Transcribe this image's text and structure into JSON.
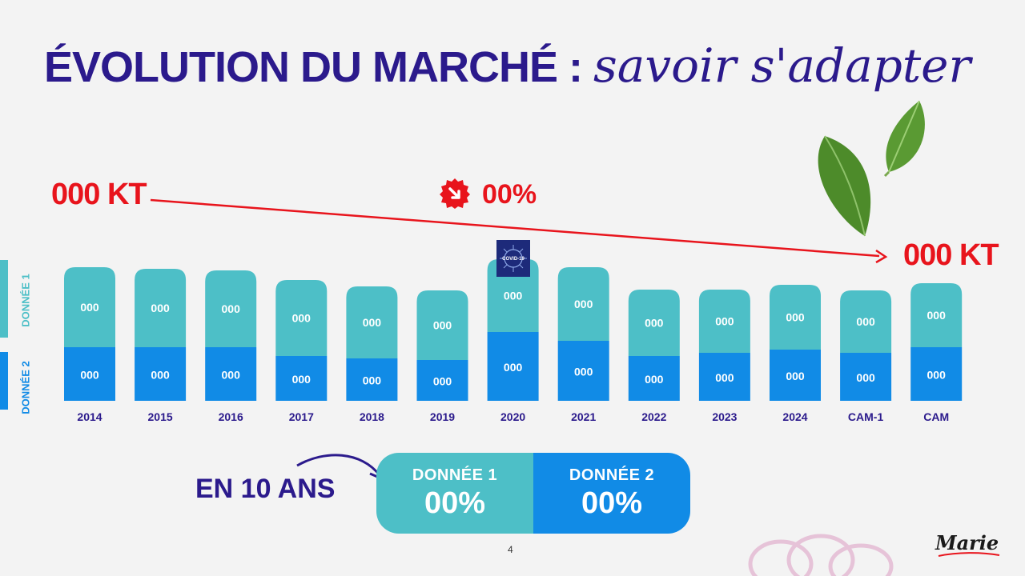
{
  "title": {
    "main": "ÉVOLUTION DU MARCHÉ :",
    "script": "savoir s'adapter"
  },
  "trend": {
    "start_label": "000 KT",
    "end_label": "000 KT",
    "drop_pct": "00%"
  },
  "side_labels": {
    "series1": "DONNÉE 1",
    "series2": "DONNÉE 2"
  },
  "covid_badge": "COVID-19",
  "summary": {
    "lead": "EN 10 ANS",
    "item1_label": "DONNÉE 1",
    "item1_value": "00%",
    "item2_label": "DONNÉE 2",
    "item2_value": "00%"
  },
  "page_number": "4",
  "logo_text": "Marie",
  "colors": {
    "series1": "#4dbfc7",
    "series2": "#118be6",
    "title": "#2b1a8c",
    "accent": "#e8141c"
  },
  "chart_data": {
    "type": "bar",
    "stacked": true,
    "categories": [
      "2014",
      "2015",
      "2016",
      "2017",
      "2018",
      "2019",
      "2020",
      "2021",
      "2022",
      "2023",
      "2024",
      "CAM-1",
      "CAM"
    ],
    "series": [
      {
        "name": "DONNÉE 2",
        "values": [
          67,
          67,
          67,
          56,
          53,
          51,
          86,
          75,
          56,
          60,
          64,
          60,
          67
        ],
        "data_labels": [
          "000",
          "000",
          "000",
          "000",
          "000",
          "000",
          "000",
          "000",
          "000",
          "000",
          "000",
          "000",
          "000"
        ]
      },
      {
        "name": "DONNÉE 1",
        "values": [
          100,
          98,
          96,
          95,
          90,
          87,
          91,
          92,
          83,
          79,
          81,
          78,
          80
        ],
        "data_labels": [
          "000",
          "000",
          "000",
          "000",
          "000",
          "000",
          "000",
          "000",
          "000",
          "000",
          "000",
          "000",
          "000"
        ]
      }
    ],
    "ylim": [
      0,
      180
    ],
    "grid": false,
    "legend": "left-vertical"
  }
}
